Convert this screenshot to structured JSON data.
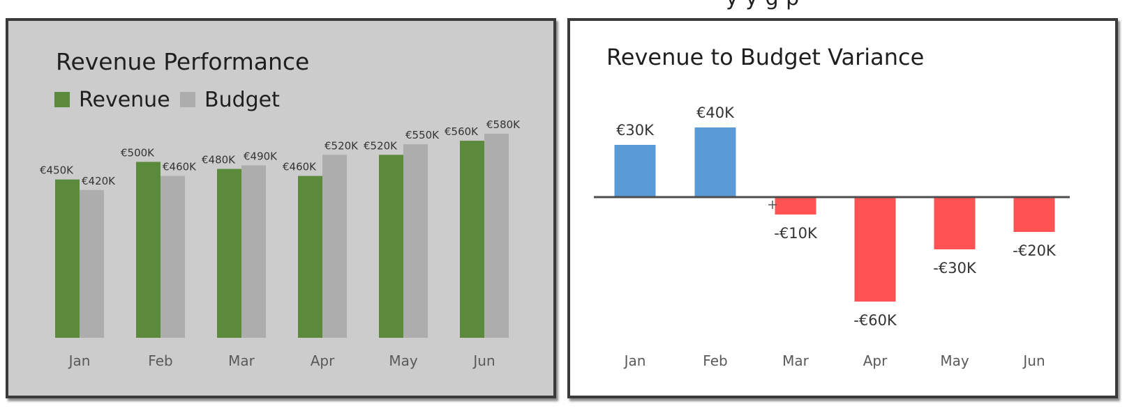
{
  "colors": {
    "revenue": "#5b8a3c",
    "budget": "#adadad",
    "positive": "#5b9bd5",
    "negative": "#ff5252",
    "axis_text": "#595959",
    "label_text": "#333333",
    "zero_line": "#4d4d4d"
  },
  "chart_data": [
    {
      "type": "bar",
      "title": "Revenue Performance",
      "categories": [
        "Jan",
        "Feb",
        "Mar",
        "Apr",
        "May",
        "Jun"
      ],
      "series": [
        {
          "name": "Revenue",
          "values": [
            450,
            500,
            480,
            460,
            520,
            560
          ],
          "labels": [
            "€450K",
            "€500K",
            "€480K",
            "€460K",
            "€520K",
            "€560K"
          ]
        },
        {
          "name": "Budget",
          "values": [
            420,
            460,
            490,
            520,
            550,
            580
          ],
          "labels": [
            "€420K",
            "€460K",
            "€490K",
            "€520K",
            "€550K",
            "€580K"
          ]
        }
      ],
      "ylim": [
        0,
        580
      ],
      "legend": "top-left",
      "grid": false
    },
    {
      "type": "bar",
      "title": "Revenue to Budget Variance",
      "categories": [
        "Jan",
        "Feb",
        "Mar",
        "Apr",
        "May",
        "Jun"
      ],
      "values": [
        30,
        40,
        -10,
        -60,
        -30,
        -20
      ],
      "labels": [
        "€30K",
        "€40K",
        "-€10K",
        "-€60K",
        "-€30K",
        "-€20K"
      ],
      "ylim": [
        -60,
        40
      ],
      "grid": false
    }
  ]
}
